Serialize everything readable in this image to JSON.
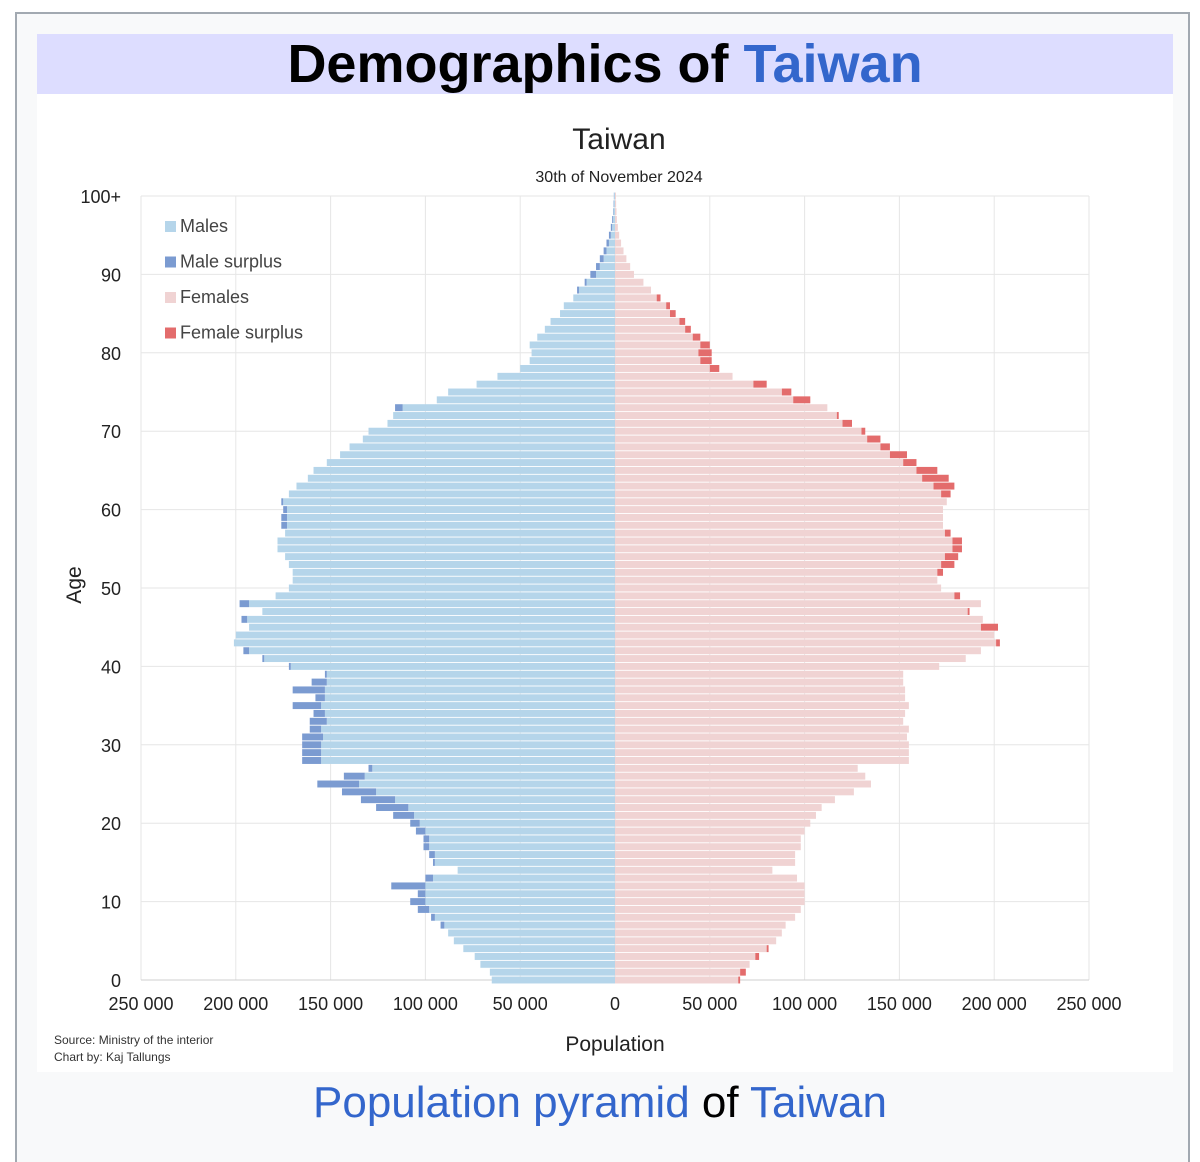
{
  "header": {
    "title_prefix": "Demographics of ",
    "title_link": "Taiwan"
  },
  "caption": {
    "link1": "Population pyramid",
    "middle": " of ",
    "link2": "Taiwan"
  },
  "colors": {
    "males": "#b5d5ea",
    "male_surplus": "#7b9bd1",
    "females": "#f0d3d3",
    "female_surplus": "#e36c6c",
    "header_bg": "#ddddff",
    "link": "#3366cc"
  },
  "chart_data": {
    "type": "bar",
    "orientation": "horizontal",
    "title": "Taiwan",
    "subtitle": "30th of November 2024",
    "xlabel": "Population",
    "ylabel": "Age",
    "xlim": [
      -250000,
      250000
    ],
    "ylim": [
      0,
      100
    ],
    "x_tick_labels": [
      "250 000",
      "200 000",
      "150 000",
      "100 000",
      "50 000",
      "0",
      "50 000",
      "100 000",
      "150 000",
      "200 000",
      "250 000"
    ],
    "x_tick_values": [
      -250000,
      -200000,
      -150000,
      -100000,
      -50000,
      0,
      50000,
      100000,
      150000,
      200000,
      250000
    ],
    "y_tick_labels": [
      "0",
      "10",
      "20",
      "30",
      "40",
      "50",
      "60",
      "70",
      "80",
      "90",
      "100+"
    ],
    "y_tick_values": [
      0,
      10,
      20,
      30,
      40,
      50,
      60,
      70,
      80,
      90,
      100
    ],
    "grid": true,
    "legend_position": "top-left",
    "legend": [
      "Males",
      "Male surplus",
      "Females",
      "Female surplus"
    ],
    "source": "Source: Ministry of the interior",
    "credit": "Chart by: Kaj Tallungs",
    "categories": [
      "0",
      "1",
      "2",
      "3",
      "4",
      "5",
      "6",
      "7",
      "8",
      "9",
      "10",
      "11",
      "12",
      "13",
      "14",
      "15",
      "16",
      "17",
      "18",
      "19",
      "20",
      "21",
      "22",
      "23",
      "24",
      "25",
      "26",
      "27",
      "28",
      "29",
      "30",
      "31",
      "32",
      "33",
      "34",
      "35",
      "36",
      "37",
      "38",
      "39",
      "40",
      "41",
      "42",
      "43",
      "44",
      "45",
      "46",
      "47",
      "48",
      "49",
      "50",
      "51",
      "52",
      "53",
      "54",
      "55",
      "56",
      "57",
      "58",
      "59",
      "60",
      "61",
      "62",
      "63",
      "64",
      "65",
      "66",
      "67",
      "68",
      "69",
      "70",
      "71",
      "72",
      "73",
      "74",
      "75",
      "76",
      "77",
      "78",
      "79",
      "80",
      "81",
      "82",
      "83",
      "84",
      "85",
      "86",
      "87",
      "88",
      "89",
      "90",
      "91",
      "92",
      "93",
      "94",
      "95",
      "96",
      "97",
      "98",
      "99",
      "100+"
    ],
    "series": [
      {
        "name": "Males",
        "values": [
          65000,
          66000,
          71000,
          74000,
          80000,
          85000,
          88000,
          92000,
          97000,
          104000,
          108000,
          104000,
          118000,
          100000,
          83000,
          96000,
          98000,
          101000,
          101000,
          105000,
          108000,
          117000,
          126000,
          134000,
          144000,
          157000,
          143000,
          130000,
          165000,
          165000,
          165000,
          165000,
          161000,
          161000,
          159000,
          170000,
          158000,
          170000,
          160000,
          153000,
          172000,
          186000,
          196000,
          201000,
          200000,
          193000,
          197000,
          186000,
          198000,
          179000,
          172000,
          170000,
          170000,
          172000,
          174000,
          178000,
          178000,
          174000,
          176000,
          176000,
          175000,
          176000,
          172000,
          168000,
          162000,
          159000,
          152000,
          145000,
          140000,
          133000,
          130000,
          120000,
          117000,
          116000,
          94000,
          88000,
          73000,
          62000,
          50000,
          45000,
          44000,
          45000,
          41000,
          37000,
          34000,
          29000,
          27000,
          22000,
          20000,
          16000,
          13000,
          10000,
          8000,
          6000,
          4500,
          3200,
          2200,
          1500,
          1000,
          800,
          600
        ]
      },
      {
        "name": "Females",
        "values": [
          66000,
          69000,
          71000,
          76000,
          81000,
          85000,
          88000,
          90000,
          95000,
          98000,
          100000,
          100000,
          100000,
          96000,
          83000,
          95000,
          95000,
          98000,
          98000,
          100000,
          103000,
          106000,
          109000,
          116000,
          126000,
          135000,
          132000,
          128000,
          155000,
          155000,
          155000,
          154000,
          155000,
          152000,
          153000,
          155000,
          153000,
          153000,
          152000,
          152000,
          171000,
          185000,
          193000,
          203000,
          200000,
          202000,
          194000,
          187000,
          193000,
          182000,
          172000,
          170000,
          173000,
          179000,
          181000,
          183000,
          183000,
          177000,
          173000,
          173000,
          173000,
          175000,
          177000,
          179000,
          176000,
          170000,
          159000,
          154000,
          145000,
          140000,
          132000,
          125000,
          118000,
          112000,
          103000,
          93000,
          80000,
          62000,
          55000,
          51000,
          51000,
          50000,
          45000,
          40000,
          37000,
          32000,
          29000,
          24000,
          19000,
          15000,
          10000,
          8000,
          6000,
          4500,
          3200,
          2200,
          1500,
          1000,
          800,
          600,
          500
        ]
      }
    ]
  }
}
